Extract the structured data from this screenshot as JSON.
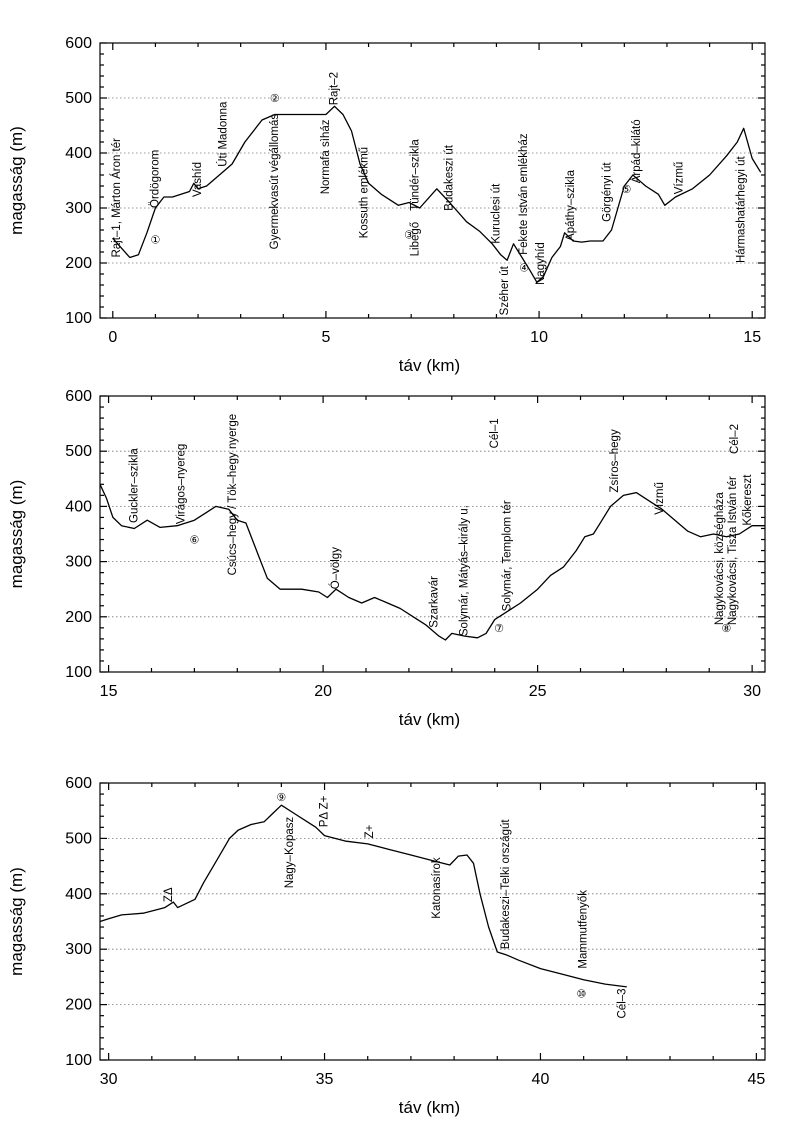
{
  "chart_data": [
    {
      "type": "line",
      "xlabel": "táv (km)",
      "ylabel": "magasság (m)",
      "xlim": [
        -0.3,
        15.3
      ],
      "ylim": [
        100,
        600
      ],
      "xticks": [
        0,
        5,
        10,
        15
      ],
      "yticks": [
        100,
        200,
        300,
        400,
        500,
        600
      ],
      "grid": "horizontal dotted",
      "series": [
        {
          "x": [
            0,
            0.4,
            0.6,
            0.8,
            1.0,
            1.2,
            1.4,
            1.8,
            1.9,
            2.0,
            2.2,
            2.5,
            2.8,
            3.1,
            3.5,
            3.8,
            4.2,
            4.6,
            5.0,
            5.2,
            5.4,
            5.6,
            5.8,
            6.0,
            6.3,
            6.7,
            6.95,
            7.2,
            7.6,
            7.9,
            8.3,
            8.6,
            8.9,
            9.1,
            9.25,
            9.4,
            9.6,
            9.8,
            9.95,
            10.1,
            10.3,
            10.5,
            10.6,
            10.8,
            11.0,
            11.2,
            11.5,
            11.7,
            12.0,
            12.2,
            12.5,
            12.8,
            12.95,
            13.2,
            13.6,
            14.0,
            14.4,
            14.65,
            14.8,
            15.0,
            15.2
          ],
          "y": [
            245,
            210,
            215,
            255,
            300,
            320,
            320,
            330,
            345,
            335,
            340,
            360,
            380,
            420,
            460,
            470,
            470,
            470,
            470,
            485,
            470,
            440,
            380,
            345,
            325,
            305,
            310,
            300,
            335,
            310,
            275,
            258,
            235,
            215,
            205,
            235,
            210,
            185,
            165,
            175,
            210,
            230,
            255,
            240,
            238,
            240,
            240,
            260,
            340,
            360,
            340,
            325,
            305,
            320,
            335,
            360,
            395,
            420,
            445,
            390,
            365
          ]
        }
      ],
      "annotations": [
        {
          "text": "Rajt–1, Márton Áron tér",
          "x": 0.1,
          "y": 210,
          "rotate": true
        },
        {
          "text": "Ördögorom",
          "x": 1.0,
          "y": 300,
          "rotate": true
        },
        {
          "text": "①",
          "x": 1.0,
          "y": 243,
          "rotate": false
        },
        {
          "text": "Vashíd",
          "x": 2.0,
          "y": 320,
          "rotate": true
        },
        {
          "text": "Úti Madonna",
          "x": 2.6,
          "y": 375,
          "rotate": true
        },
        {
          "text": "②",
          "x": 3.8,
          "y": 500,
          "rotate": false
        },
        {
          "text": "Gyermekvasút végállomás",
          "x": 3.8,
          "y": 225,
          "rotate": true
        },
        {
          "text": "Normafa sìház",
          "x": 5.0,
          "y": 325,
          "rotate": true
        },
        {
          "text": "Rajt–2",
          "x": 5.2,
          "y": 487,
          "rotate": true
        },
        {
          "text": "Kossuth emlékmű",
          "x": 5.9,
          "y": 245,
          "rotate": true
        },
        {
          "text": "Tündér–szikla",
          "x": 7.1,
          "y": 295,
          "rotate": true
        },
        {
          "text": "③",
          "x": 6.95,
          "y": 252,
          "rotate": false
        },
        {
          "text": "Libegő",
          "x": 7.1,
          "y": 212,
          "rotate": true
        },
        {
          "text": "Budakeszi út",
          "x": 7.9,
          "y": 295,
          "rotate": true
        },
        {
          "text": "Kuruclesi út",
          "x": 9.0,
          "y": 235,
          "rotate": true
        },
        {
          "text": "Széher út",
          "x": 9.2,
          "y": 105,
          "rotate": true
        },
        {
          "text": "Fekete István emlékház",
          "x": 9.65,
          "y": 215,
          "rotate": true
        },
        {
          "text": "④",
          "x": 9.65,
          "y": 192,
          "rotate": false
        },
        {
          "text": "Nagyhíd",
          "x": 10.05,
          "y": 160,
          "rotate": true
        },
        {
          "text": "Apáthy–szikla",
          "x": 10.75,
          "y": 240,
          "rotate": true
        },
        {
          "text": "Görgényi út",
          "x": 11.6,
          "y": 275,
          "rotate": true
        },
        {
          "text": "⑤",
          "x": 12.05,
          "y": 335,
          "rotate": false
        },
        {
          "text": "Árpád–kilátó",
          "x": 12.3,
          "y": 345,
          "rotate": true
        },
        {
          "text": "Vízmű",
          "x": 13.3,
          "y": 325,
          "rotate": true
        },
        {
          "text": "Hármashatárhegyi út",
          "x": 14.75,
          "y": 200,
          "rotate": true
        }
      ]
    },
    {
      "type": "line",
      "xlabel": "táv (km)",
      "ylabel": "magasság (m)",
      "xlim": [
        14.8,
        30.3
      ],
      "ylim": [
        100,
        600
      ],
      "xticks": [
        15,
        20,
        25,
        30
      ],
      "yticks": [
        100,
        200,
        300,
        400,
        500,
        600
      ],
      "grid": "horizontal dotted",
      "series": [
        {
          "x": [
            14.8,
            14.95,
            15.1,
            15.3,
            15.6,
            15.9,
            16.2,
            16.6,
            17.0,
            17.3,
            17.5,
            17.8,
            18.0,
            18.2,
            18.5,
            18.7,
            19.0,
            19.5,
            19.9,
            20.1,
            20.3,
            20.6,
            20.9,
            21.2,
            21.5,
            21.8,
            22.1,
            22.4,
            22.7,
            22.85,
            23.0,
            23.3,
            23.6,
            23.8,
            24.0,
            24.3,
            24.6,
            25.0,
            25.3,
            25.6,
            25.9,
            26.1,
            26.3,
            26.5,
            26.7,
            27.0,
            27.3,
            27.6,
            27.9,
            28.2,
            28.5,
            28.8,
            29.1,
            29.4,
            29.7,
            30.0,
            30.3
          ],
          "y": [
            440,
            415,
            380,
            365,
            360,
            375,
            362,
            365,
            375,
            390,
            400,
            395,
            375,
            370,
            310,
            270,
            250,
            250,
            245,
            235,
            250,
            235,
            225,
            235,
            225,
            215,
            200,
            185,
            165,
            158,
            170,
            165,
            162,
            170,
            195,
            210,
            225,
            250,
            275,
            290,
            320,
            345,
            350,
            375,
            400,
            420,
            425,
            410,
            395,
            375,
            355,
            345,
            350,
            345,
            350,
            365,
            365
          ]
        }
      ],
      "annotations": [
        {
          "text": "Guckler–szikla",
          "x": 15.6,
          "y": 370,
          "rotate": true
        },
        {
          "text": "Virágos–nyereg",
          "x": 16.7,
          "y": 368,
          "rotate": true
        },
        {
          "text": "⑥",
          "x": 17.0,
          "y": 340,
          "rotate": false
        },
        {
          "text": "Csúcs–hegy / Tök–hegy nyerge",
          "x": 17.9,
          "y": 275,
          "rotate": true
        },
        {
          "text": "Ó–völgy",
          "x": 20.3,
          "y": 250,
          "rotate": true
        },
        {
          "text": "Szarkavár",
          "x": 22.6,
          "y": 180,
          "rotate": true
        },
        {
          "text": "Solymár, Mátyás–király u.",
          "x": 23.3,
          "y": 165,
          "rotate": true
        },
        {
          "text": "Cél–1",
          "x": 24.0,
          "y": 505,
          "rotate": true
        },
        {
          "text": "Solymár, Templom tér",
          "x": 24.3,
          "y": 210,
          "rotate": true
        },
        {
          "text": "⑦",
          "x": 24.1,
          "y": 180,
          "rotate": false
        },
        {
          "text": "Zsíros–hegy",
          "x": 26.8,
          "y": 425,
          "rotate": true
        },
        {
          "text": "Vízmű",
          "x": 27.85,
          "y": 385,
          "rotate": true
        },
        {
          "text": "Nagykovácsi, községháza",
          "x": 29.25,
          "y": 185,
          "rotate": true
        },
        {
          "text": "Nagykovácsi, Tisza István tér",
          "x": 29.55,
          "y": 185,
          "rotate": true
        },
        {
          "text": "⑧",
          "x": 29.4,
          "y": 180,
          "rotate": false
        },
        {
          "text": "Cél–2",
          "x": 29.6,
          "y": 495,
          "rotate": true
        },
        {
          "text": "Kőkereszt",
          "x": 29.9,
          "y": 365,
          "rotate": true
        }
      ]
    },
    {
      "type": "line",
      "xlabel": "táv (km)",
      "ylabel": "magasság (m)",
      "xlim": [
        29.8,
        45.2
      ],
      "ylim": [
        100,
        600
      ],
      "xticks": [
        30,
        35,
        40,
        45
      ],
      "yticks": [
        100,
        200,
        300,
        400,
        500,
        600
      ],
      "grid": "horizontal dotted",
      "series": [
        {
          "x": [
            29.8,
            30.0,
            30.3,
            30.8,
            31.3,
            31.5,
            31.6,
            32.0,
            32.2,
            32.5,
            32.8,
            33.0,
            33.3,
            33.6,
            33.8,
            34.0,
            34.3,
            34.6,
            34.8,
            35.0,
            35.5,
            36.0,
            36.5,
            37.0,
            37.5,
            37.9,
            38.1,
            38.3,
            38.45,
            38.6,
            38.8,
            39.0,
            39.2,
            39.5,
            40.0,
            40.5,
            41.0,
            41.5,
            42.0
          ],
          "y": [
            350,
            355,
            362,
            365,
            375,
            385,
            375,
            390,
            420,
            460,
            500,
            515,
            525,
            530,
            545,
            560,
            545,
            530,
            520,
            505,
            495,
            490,
            480,
            470,
            460,
            452,
            468,
            470,
            455,
            400,
            340,
            295,
            290,
            280,
            265,
            255,
            245,
            237,
            232
          ]
        }
      ],
      "annotations": [
        {
          "text": "ZΔ",
          "x": 31.4,
          "y": 385,
          "rotate": true
        },
        {
          "text": "⑨",
          "x": 34.0,
          "y": 575,
          "rotate": false
        },
        {
          "text": "Nagy–Kopasz",
          "x": 34.2,
          "y": 410,
          "rotate": true
        },
        {
          "text": "PΔ Z+",
          "x": 35.0,
          "y": 520,
          "rotate": true
        },
        {
          "text": "Z+",
          "x": 36.05,
          "y": 500,
          "rotate": true
        },
        {
          "text": "Katonasírok",
          "x": 37.6,
          "y": 355,
          "rotate": true
        },
        {
          "text": "Budakeszi–Telki országút",
          "x": 39.2,
          "y": 300,
          "rotate": true
        },
        {
          "text": "Mammutfenyők",
          "x": 41.0,
          "y": 265,
          "rotate": true
        },
        {
          "text": "⑩",
          "x": 40.95,
          "y": 220,
          "rotate": false
        },
        {
          "text": "Cél–3",
          "x": 41.9,
          "y": 175,
          "rotate": true
        }
      ]
    }
  ]
}
